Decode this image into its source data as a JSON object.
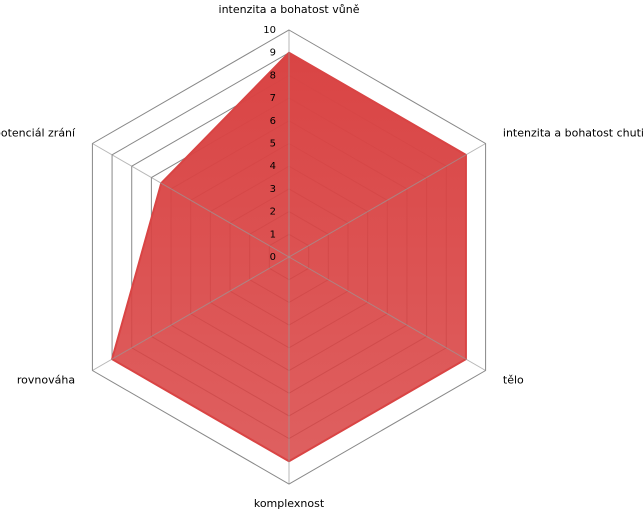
{
  "chart_data": {
    "type": "radar",
    "categories": [
      "intenzita a bohatost vůně",
      "intenzita a bohatost chuti",
      "tělo",
      "komplexnost",
      "rovnováha",
      "potenciál zrání"
    ],
    "values": [
      9,
      9,
      9,
      9,
      9,
      6.5
    ],
    "color": "#d94444",
    "ylim": [
      0,
      10
    ],
    "yticks": [
      0,
      1,
      2,
      3,
      4,
      5,
      6,
      7,
      8,
      9,
      10
    ],
    "grid": true
  }
}
